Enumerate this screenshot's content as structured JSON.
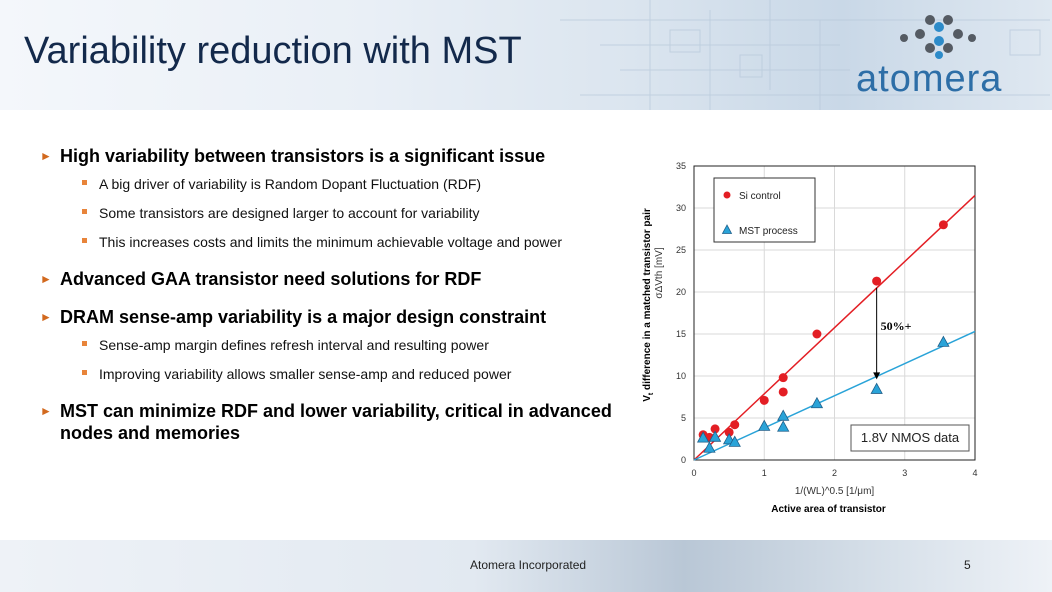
{
  "slide": {
    "title": "Variability reduction with MST",
    "logo_text": "atomera",
    "footer_text": "Atomera Incorporated",
    "page_number": "5"
  },
  "bullets": [
    {
      "text": "High variability between transistors is a significant issue",
      "sub": [
        "A big driver of variability is Random Dopant Fluctuation (RDF)",
        "Some transistors are designed larger to account for variability",
        "This increases costs and limits the minimum achievable voltage and power"
      ]
    },
    {
      "text": "Advanced GAA transistor need solutions for RDF",
      "sub": []
    },
    {
      "text": "DRAM sense-amp variability is a major design constraint",
      "sub": [
        "Sense-amp margin defines refresh interval and resulting power",
        "Improving variability allows smaller sense-amp and reduced power"
      ]
    },
    {
      "text": "MST can minimize RDF and lower variability, critical in advanced nodes and memories",
      "sub": []
    }
  ],
  "chart_data": {
    "type": "scatter",
    "xlabel": "1/(WL)^0.5 [1/μm]",
    "xlabel_outer": "Active area of transistor",
    "ylabel": "σΔVth [mV]",
    "ylabel_outer_prefix": "V",
    "ylabel_outer_sub": "t",
    "ylabel_outer_rest": " difference in a matched transistor pair",
    "xlim": [
      0,
      4
    ],
    "ylim": [
      0,
      35
    ],
    "xticks": [
      "0",
      "1",
      "2",
      "3",
      "4"
    ],
    "yticks": [
      "0",
      "5",
      "10",
      "15",
      "20",
      "25",
      "30",
      "35"
    ],
    "grid": true,
    "legend_position": "top-left",
    "series": [
      {
        "name": "Si control",
        "color": "#e31e24",
        "marker": "circle",
        "x": [
          0.13,
          0.22,
          0.3,
          0.5,
          0.58,
          1.0,
          1.27,
          1.27,
          1.75,
          2.6,
          3.55
        ],
        "y": [
          3.0,
          2.7,
          3.7,
          3.3,
          4.2,
          7.1,
          8.1,
          9.8,
          15.0,
          21.3,
          28.0
        ],
        "fit": {
          "x": [
            0,
            4
          ],
          "y": [
            0,
            31.5
          ]
        }
      },
      {
        "name": "MST process",
        "color": "#29a3d8",
        "marker": "triangle",
        "x": [
          0.13,
          0.22,
          0.3,
          0.5,
          0.58,
          1.0,
          1.27,
          1.27,
          1.75,
          2.6,
          3.55
        ],
        "y": [
          2.6,
          1.4,
          2.7,
          2.4,
          2.1,
          4.0,
          3.9,
          5.2,
          6.7,
          8.4,
          14.0
        ],
        "fit": {
          "x": [
            0,
            4
          ],
          "y": [
            0,
            15.3
          ]
        }
      }
    ],
    "annotations": [
      {
        "text": "50%+",
        "x": 2.6,
        "y_from": 20.5,
        "y_to": 9.6
      },
      {
        "text": "1.8V NMOS data"
      }
    ]
  }
}
